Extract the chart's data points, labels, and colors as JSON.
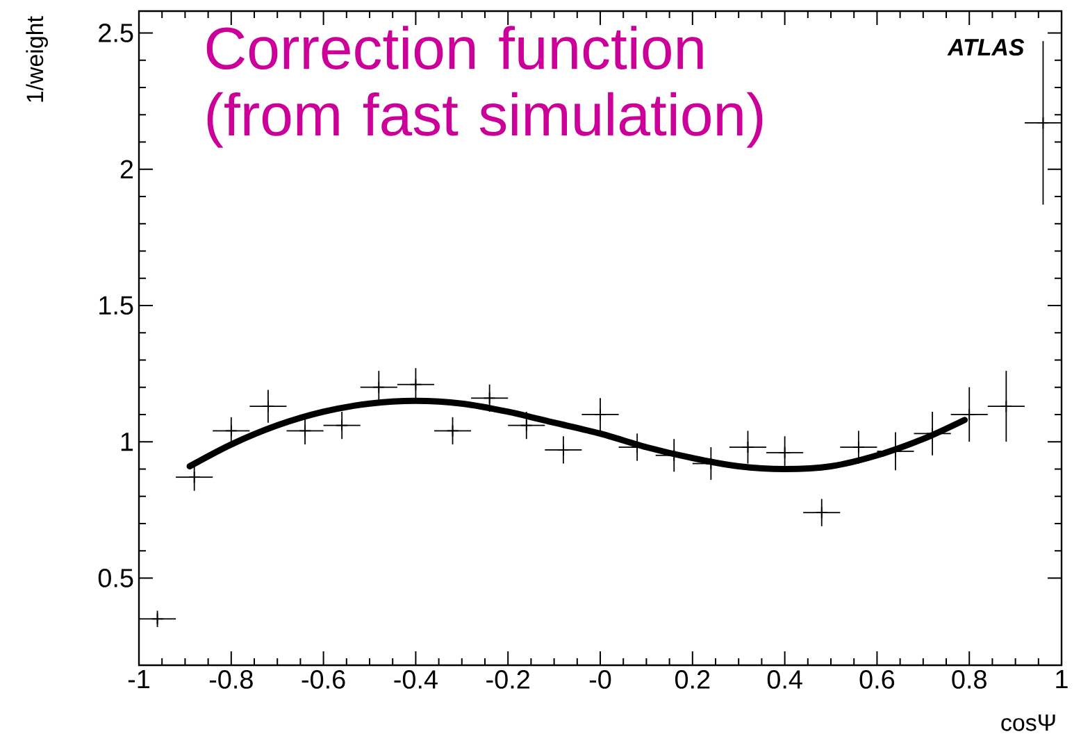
{
  "chart_data": {
    "type": "scatter",
    "xlabel": "cosΨ",
    "ylabel": "1/weight",
    "annotations": [
      "Correction function (from fast simulation)",
      "ATLAS"
    ],
    "xlim": [
      -1,
      1
    ],
    "ylim": [
      0.18,
      2.58
    ],
    "xticks": [
      -1,
      -0.8,
      -0.6,
      -0.4,
      -0.2,
      {
        "value": 0,
        "label": "-0"
      },
      0.2,
      0.4,
      0.6,
      0.8,
      1
    ],
    "yticks": [
      0.5,
      1,
      1.5,
      2,
      2.5
    ],
    "grid": false,
    "series": [
      {
        "type": "scatter",
        "marker": "cross",
        "color": "#000000",
        "x": [
          -0.96,
          -0.88,
          -0.8,
          -0.72,
          -0.64,
          -0.56,
          -0.48,
          -0.4,
          -0.32,
          -0.24,
          -0.16,
          -0.08,
          0,
          0.08,
          0.16,
          0.24,
          0.32,
          0.4,
          0.48,
          0.56,
          0.64,
          0.72,
          0.8,
          0.88,
          0.96
        ],
        "values": [
          0.35,
          0.87,
          1.04,
          1.13,
          1.04,
          1.06,
          1.2,
          1.21,
          1.04,
          1.16,
          1.06,
          0.97,
          1.1,
          0.98,
          0.95,
          0.92,
          0.98,
          0.96,
          0.74,
          0.98,
          0.965,
          1.03,
          1.1,
          1.13,
          2.17
        ],
        "errors": [
          0.03,
          0.05,
          0.05,
          0.06,
          0.05,
          0.05,
          0.06,
          0.06,
          0.05,
          0.05,
          0.05,
          0.05,
          0.06,
          0.05,
          0.06,
          0.06,
          0.06,
          0.06,
          0.05,
          0.06,
          0.07,
          0.08,
          0.1,
          0.13,
          0.3
        ],
        "xerrors": [
          0.04,
          0.04,
          0.04,
          0.04,
          0.04,
          0.04,
          0.04,
          0.04,
          0.04,
          0.04,
          0.04,
          0.04,
          0.04,
          0.04,
          0.04,
          0.04,
          0.04,
          0.04,
          0.04,
          0.04,
          0.04,
          0.04,
          0.04,
          0.04,
          0.04
        ]
      },
      {
        "type": "line",
        "color": "#000000",
        "line_style": "solid",
        "x": [
          -0.89,
          -0.8,
          -0.7,
          -0.6,
          -0.5,
          -0.4,
          -0.3,
          -0.2,
          -0.1,
          0,
          0.1,
          0.2,
          0.3,
          0.4,
          0.5,
          0.6,
          0.7,
          0.79
        ],
        "values": [
          0.91,
          0.99,
          1.06,
          1.11,
          1.14,
          1.15,
          1.14,
          1.11,
          1.07,
          1.03,
          0.98,
          0.94,
          0.91,
          0.9,
          0.91,
          0.95,
          1.01,
          1.08
        ]
      }
    ]
  }
}
